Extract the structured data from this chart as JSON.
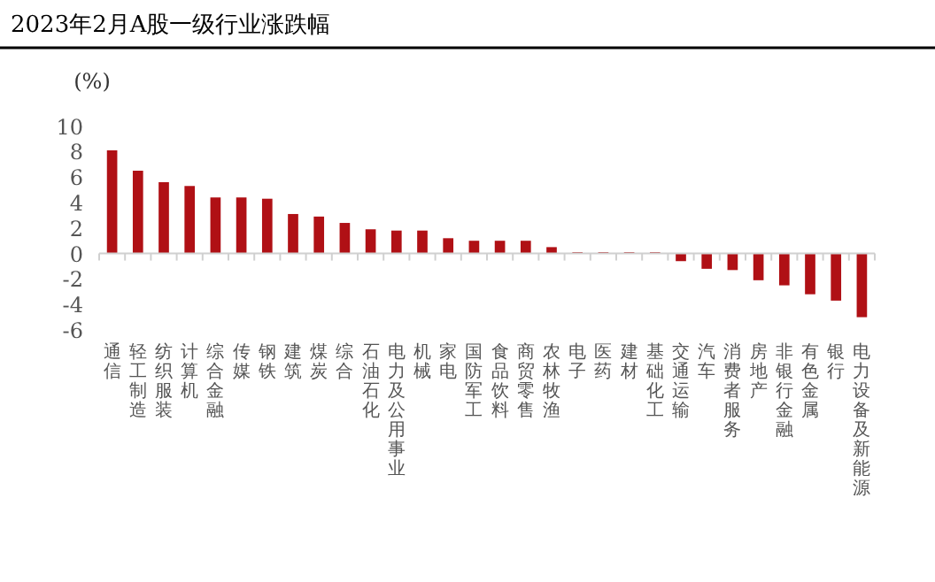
{
  "chart_data": {
    "type": "bar",
    "title": "2023年2月A股一级行业涨跌幅",
    "ylabel": "(%)",
    "categories": [
      "通信",
      "轻工制造",
      "纺织服装",
      "计算机",
      "综合金融",
      "传媒",
      "钢铁",
      "建筑",
      "煤炭",
      "综合",
      "石油石化",
      "电力及公用事业",
      "机械",
      "家电",
      "国防军工",
      "食品饮料",
      "商贸零售",
      "农林牧渔",
      "电子",
      "医药",
      "建材",
      "基础化工",
      "交通运输",
      "汽车",
      "消费者服务",
      "房地产",
      "非银行金融",
      "有色金属",
      "银行",
      "电力设备及新能源"
    ],
    "values": [
      8.1,
      6.5,
      5.6,
      5.3,
      4.4,
      4.4,
      4.3,
      3.1,
      2.9,
      2.4,
      1.9,
      1.8,
      1.8,
      1.2,
      1.0,
      1.0,
      1.0,
      0.5,
      0.1,
      0.1,
      0.1,
      0.1,
      -0.6,
      -1.2,
      -1.3,
      -2.1,
      -2.5,
      -3.2,
      -3.7,
      -5.0
    ],
    "color": "#b01015",
    "ylim": [
      -6,
      10
    ],
    "yticks": [
      -6,
      -4,
      -2,
      0,
      2,
      4,
      6,
      8,
      10
    ]
  }
}
